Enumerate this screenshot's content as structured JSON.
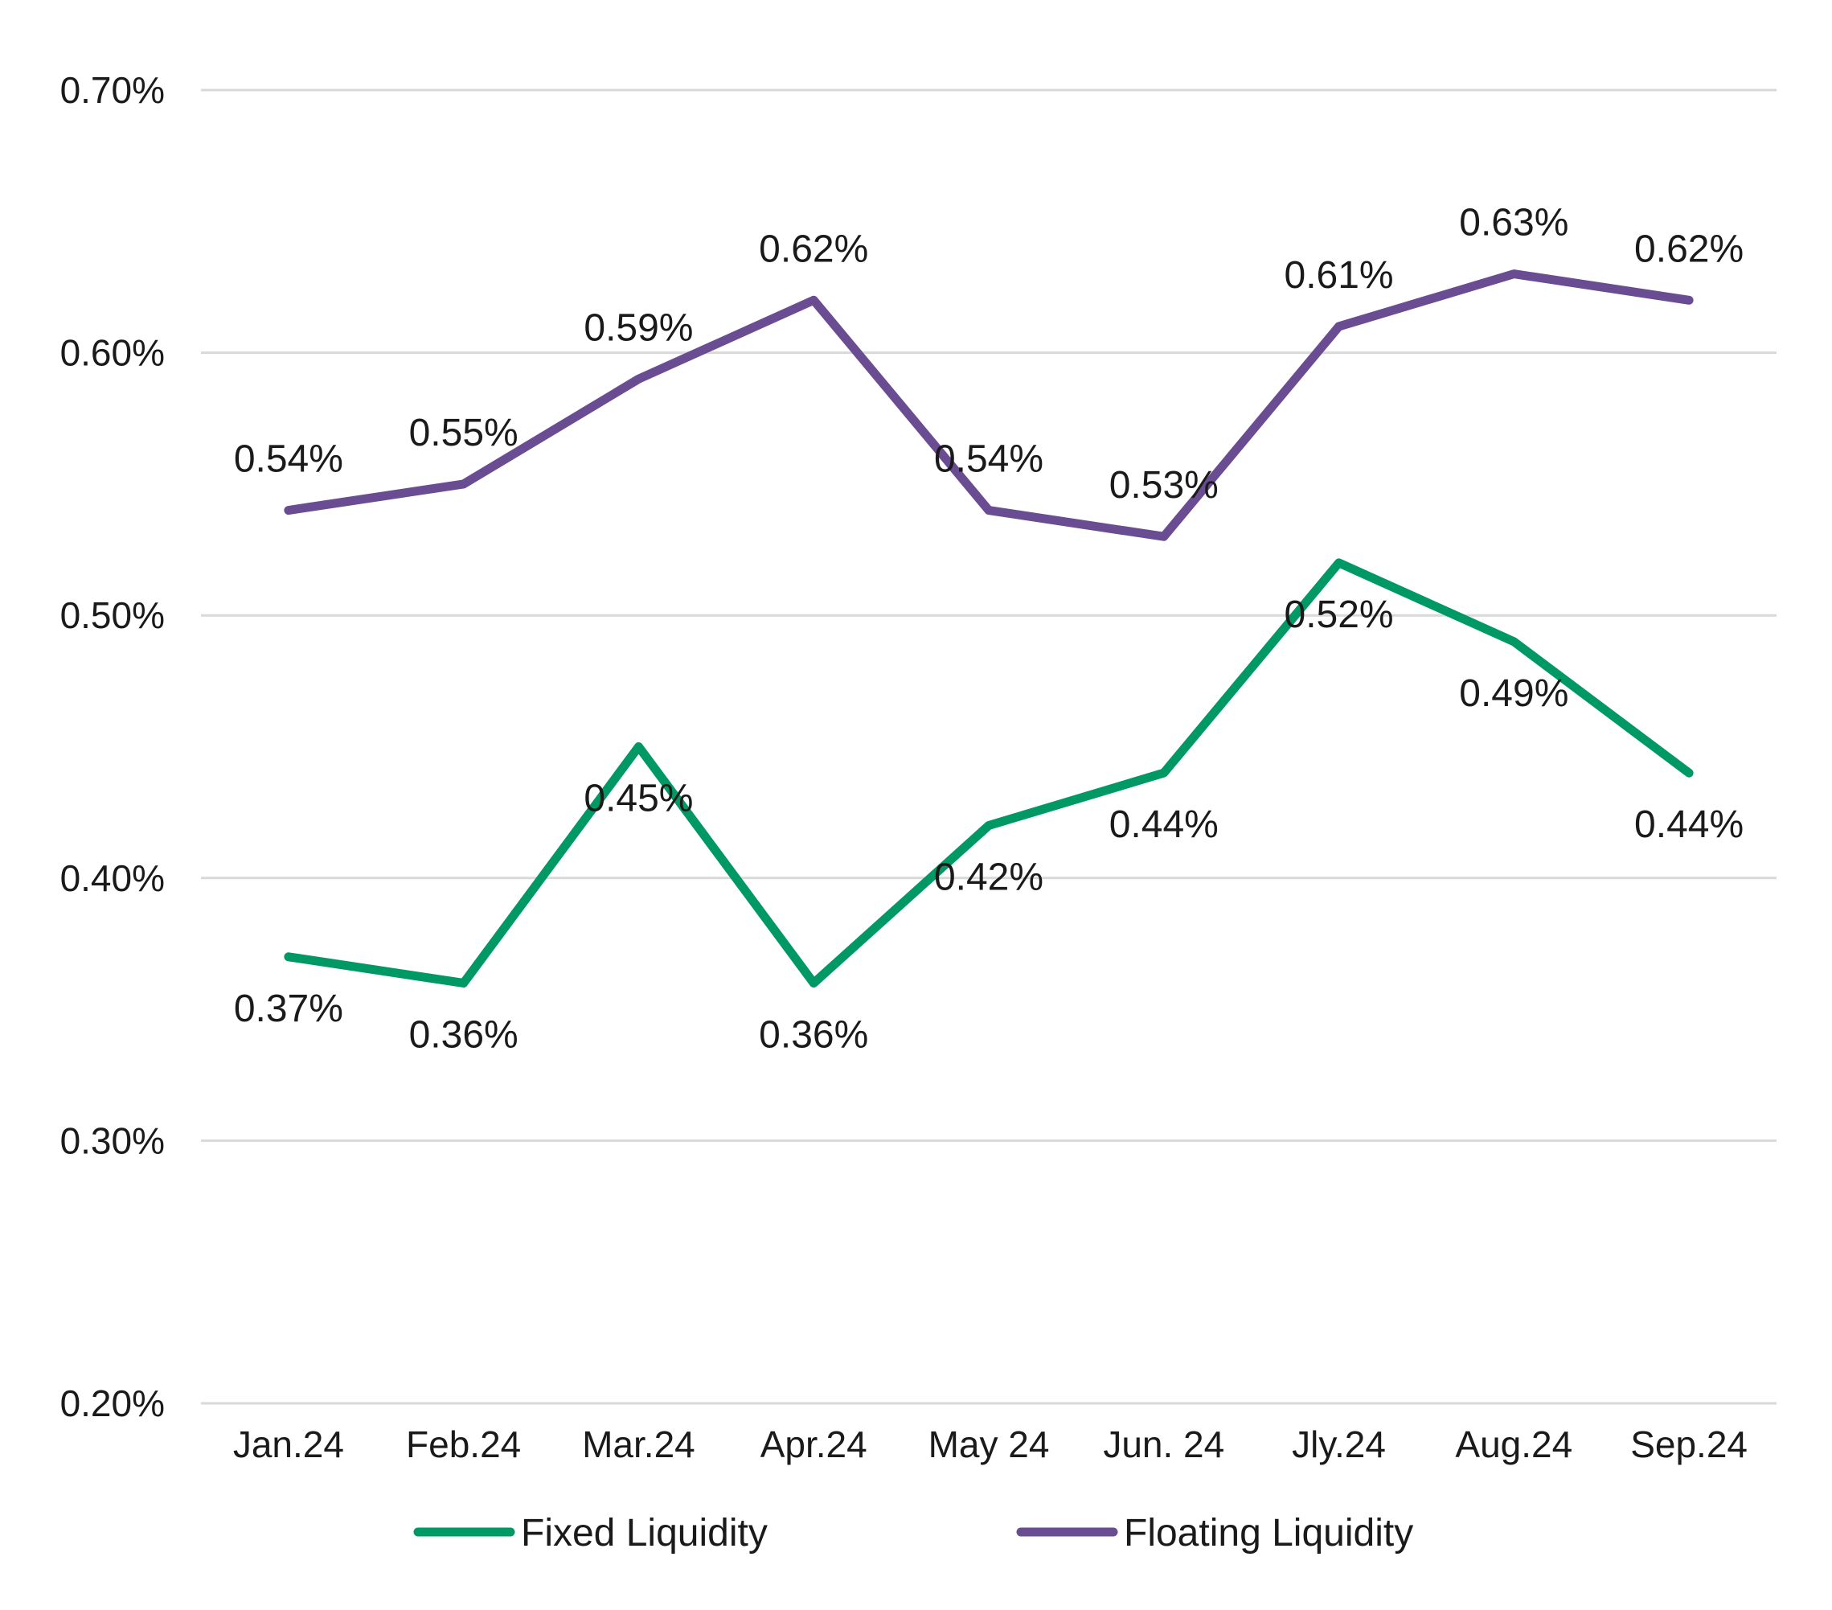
{
  "chart_data": {
    "type": "line",
    "title": "",
    "xlabel": "",
    "ylabel": "",
    "categories": [
      "Jan.24",
      "Feb.24",
      "Mar.24",
      "Apr.24",
      "May 24",
      "Jun. 24",
      "Jly.24",
      "Aug.24",
      "Sep.24"
    ],
    "ylim": [
      0.2,
      0.7
    ],
    "yticks": [
      0.2,
      0.3,
      0.4,
      0.5,
      0.6,
      0.7
    ],
    "ytick_labels": [
      "0.20%",
      "0.30%",
      "0.40%",
      "0.50%",
      "0.60%",
      "0.70%"
    ],
    "grid": true,
    "legend_position": "bottom",
    "series": [
      {
        "name": "Fixed Liquidity",
        "color": "#009966",
        "values": [
          0.37,
          0.36,
          0.45,
          0.36,
          0.42,
          0.44,
          0.52,
          0.49,
          0.44
        ],
        "labels": [
          "0.37%",
          "0.36%",
          "0.45%",
          "0.36%",
          "0.42%",
          "0.44%",
          "0.52%",
          "0.49%",
          "0.44%"
        ],
        "label_position": "below"
      },
      {
        "name": "Floating Liquidity",
        "color": "#6a4c93",
        "values": [
          0.54,
          0.55,
          0.59,
          0.62,
          0.54,
          0.53,
          0.61,
          0.63,
          0.62
        ],
        "labels": [
          "0.54%",
          "0.55%",
          "0.59%",
          "0.62%",
          "0.54%",
          "0.53%",
          "0.61%",
          "0.63%",
          "0.62%"
        ],
        "label_position": "above"
      }
    ]
  }
}
